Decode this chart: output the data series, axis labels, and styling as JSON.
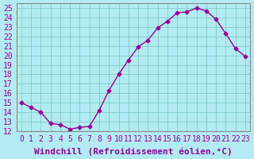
{
  "x": [
    0,
    1,
    2,
    3,
    4,
    5,
    6,
    7,
    8,
    9,
    10,
    11,
    12,
    13,
    14,
    15,
    16,
    17,
    18,
    19,
    20,
    21,
    22,
    23
  ],
  "y": [
    15.0,
    14.5,
    14.0,
    12.8,
    12.7,
    12.2,
    12.4,
    12.5,
    14.2,
    16.3,
    18.0,
    19.5,
    20.9,
    21.6,
    22.9,
    23.6,
    24.5,
    24.6,
    25.0,
    24.7,
    23.8,
    22.3,
    20.7,
    19.9
  ],
  "line_color": "#990099",
  "marker": "D",
  "marker_size": 2.5,
  "xlabel": "Windchill (Refroidissement éolien,°C)",
  "xlim_min": -0.5,
  "xlim_max": 23.5,
  "ylim_min": 12,
  "ylim_max": 25.5,
  "yticks": [
    12,
    13,
    14,
    15,
    16,
    17,
    18,
    19,
    20,
    21,
    22,
    23,
    24,
    25
  ],
  "xticks": [
    0,
    1,
    2,
    3,
    4,
    5,
    6,
    7,
    8,
    9,
    10,
    11,
    12,
    13,
    14,
    15,
    16,
    17,
    18,
    19,
    20,
    21,
    22,
    23
  ],
  "bg_color": "#b2ebf2",
  "grid_color": "#80cbc4",
  "border_color": "#888888",
  "tick_color": "#990099",
  "label_color": "#990099",
  "font_size": 7
}
